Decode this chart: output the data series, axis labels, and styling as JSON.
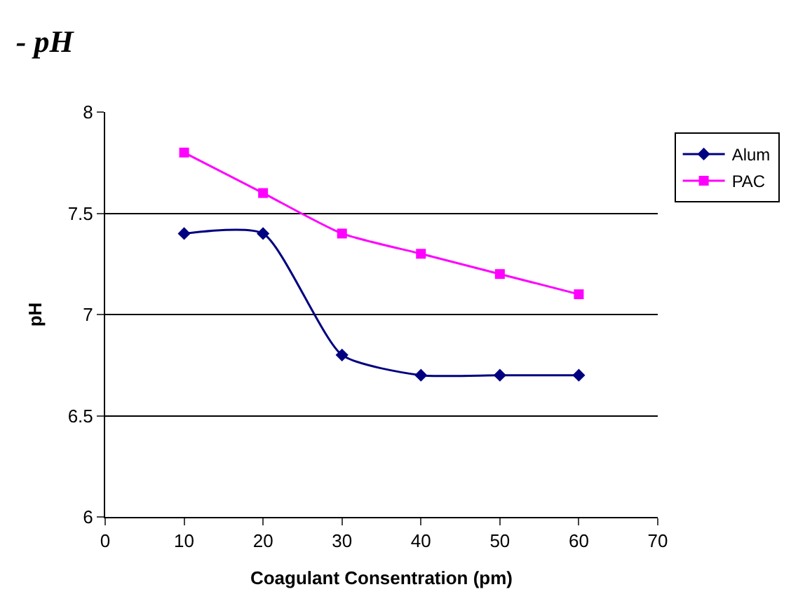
{
  "chart_data": {
    "type": "line",
    "title": "- pH",
    "xlabel": "Coagulant Consentration (pm)",
    "ylabel": "pH",
    "x": [
      10,
      20,
      30,
      40,
      50,
      60
    ],
    "series": [
      {
        "name": "Alum",
        "color": "#000080",
        "marker": "diamond",
        "values": [
          7.4,
          7.4,
          6.8,
          6.7,
          6.7,
          6.7
        ]
      },
      {
        "name": "PAC",
        "color": "#ff00ff",
        "marker": "square",
        "values": [
          7.8,
          7.6,
          7.4,
          7.3,
          7.2,
          7.1
        ]
      }
    ],
    "xlim": [
      0,
      70
    ],
    "xticks": [
      0,
      10,
      20,
      30,
      40,
      50,
      60,
      70
    ],
    "ylim": [
      6,
      8
    ],
    "yticks": [
      6,
      6.5,
      7,
      7.5,
      8
    ],
    "grid": "y",
    "legend": "right"
  }
}
